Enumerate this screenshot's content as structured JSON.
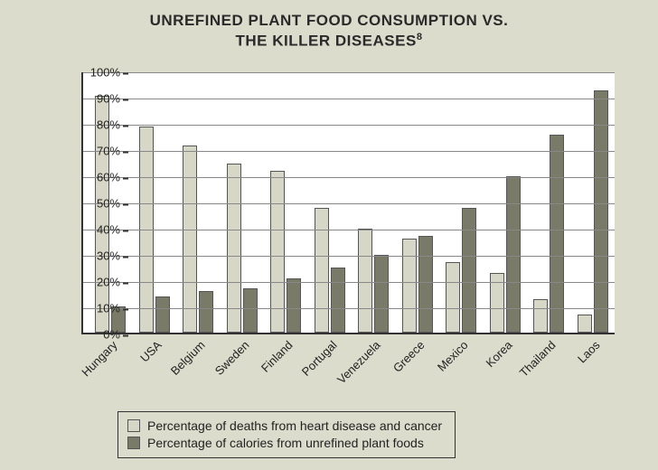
{
  "title_line1": "UNREFINED PLANT FOOD CONSUMPTION VS.",
  "title_line2": "THE KILLER DISEASES",
  "footnote_mark": "8",
  "chart": {
    "type": "bar",
    "ylim": [
      0,
      100
    ],
    "ytick_step": 10,
    "ytick_suffix": "%",
    "background_color": "#ffffff",
    "page_background": "#dcdccc",
    "grid_color": "#888888",
    "axis_color": "#333333",
    "bar_border": "#555555",
    "series": [
      {
        "key": "deaths",
        "label": "Percentage of deaths from heart disease and cancer",
        "color": "#d7d7c7"
      },
      {
        "key": "plant",
        "label": "Percentage of calories from unrefined plant foods",
        "color": "#7a7a68"
      }
    ],
    "categories": [
      {
        "label": "Hungary",
        "deaths": 91,
        "plant": 10
      },
      {
        "label": "USA",
        "deaths": 79,
        "plant": 14
      },
      {
        "label": "Belgium",
        "deaths": 72,
        "plant": 16
      },
      {
        "label": "Sweden",
        "deaths": 65,
        "plant": 17
      },
      {
        "label": "Finland",
        "deaths": 62,
        "plant": 21
      },
      {
        "label": "Portugal",
        "deaths": 48,
        "plant": 25
      },
      {
        "label": "Venezuela",
        "deaths": 40,
        "plant": 30
      },
      {
        "label": "Greece",
        "deaths": 36,
        "plant": 37
      },
      {
        "label": "Mexico",
        "deaths": 27,
        "plant": 48
      },
      {
        "label": "Korea",
        "deaths": 23,
        "plant": 60
      },
      {
        "label": "Thailand",
        "deaths": 13,
        "plant": 76
      },
      {
        "label": "Laos",
        "deaths": 7,
        "plant": 93
      }
    ]
  },
  "legend_header": ""
}
